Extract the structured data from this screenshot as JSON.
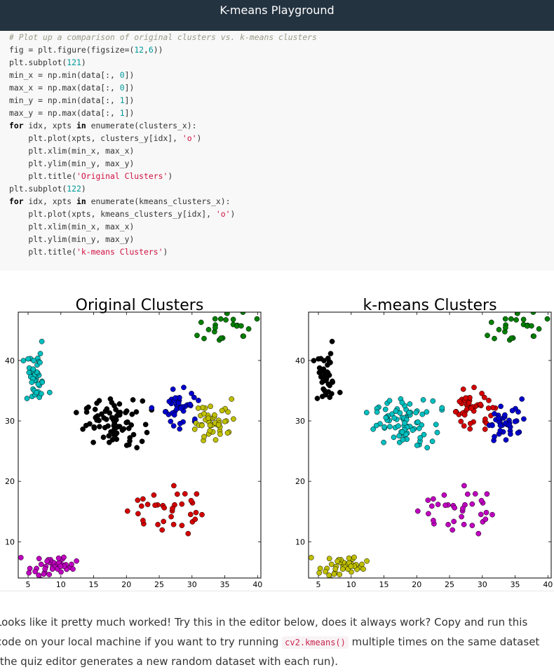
{
  "header": {
    "title": "K-means Playground"
  },
  "code_lines": [
    "# Plot up a comparison of original clusters vs. k-means clusters",
    "fig = plt.figure(figsize=(12,6))",
    "plt.subplot(121)",
    "min_x = np.min(data[:, 0])",
    "max_x = np.max(data[:, 0])",
    "min_y = np.min(data[:, 1])",
    "max_y = np.max(data[:, 1])",
    "for idx, xpts in enumerate(clusters_x):",
    "    plt.plot(xpts, clusters_y[idx], 'o')",
    "    plt.xlim(min_x, max_x)",
    "    plt.ylim(min_y, max_y)",
    "    plt.title('Original Clusters')",
    "plt.subplot(122)",
    "for idx, xpts in enumerate(kmeans_clusters_x):",
    "    plt.plot(xpts, kmeans_clusters_y[idx], 'o')",
    "    plt.xlim(min_x, max_x)",
    "    plt.ylim(min_y, max_y)",
    "    plt.title('k-means Clusters')"
  ],
  "chart_data": [
    {
      "type": "scatter",
      "title": "Original Clusters",
      "xlabel": "",
      "ylabel": "",
      "xlim": [
        3.5,
        40.5
      ],
      "ylim": [
        4,
        48
      ],
      "x_ticks": [
        5,
        10,
        15,
        20,
        25,
        30,
        35,
        40
      ],
      "y_ticks": [
        10,
        20,
        30,
        40
      ],
      "grid": false,
      "legend": "none",
      "series": [
        {
          "color": "#00bfbf",
          "center": [
            6.1,
            36.9
          ],
          "spread": [
            1.0,
            2.1
          ],
          "count": 40
        },
        {
          "color": "#000000",
          "center": [
            18.0,
            29.6
          ],
          "spread": [
            2.2,
            1.9
          ],
          "count": 80
        },
        {
          "color": "#0000cc",
          "center": [
            28.4,
            32.4
          ],
          "spread": [
            1.4,
            1.8
          ],
          "count": 40
        },
        {
          "color": "#bfbf00",
          "center": [
            33.5,
            30.2
          ],
          "spread": [
            1.8,
            1.7
          ],
          "count": 45
        },
        {
          "color": "#d40000",
          "center": [
            25.4,
            15.4
          ],
          "spread": [
            2.6,
            2.1
          ],
          "count": 35
        },
        {
          "color": "#bf00bf",
          "center": [
            8.8,
            5.9
          ],
          "spread": [
            1.8,
            0.9
          ],
          "count": 40
        },
        {
          "color": "#007f00",
          "center": [
            35.0,
            45.4
          ],
          "spread": [
            2.5,
            1.3
          ],
          "count": 25
        }
      ]
    },
    {
      "type": "scatter",
      "title": "k-means Clusters",
      "xlabel": "",
      "ylabel": "",
      "xlim": [
        3.5,
        40.5
      ],
      "ylim": [
        4,
        48
      ],
      "x_ticks": [
        5,
        10,
        15,
        20,
        25,
        30,
        35,
        40
      ],
      "y_ticks": [
        10,
        20,
        30,
        40
      ],
      "grid": false,
      "legend": "none",
      "series": [
        {
          "color": "#000000",
          "center": [
            6.1,
            36.9
          ],
          "spread": [
            1.0,
            2.1
          ],
          "count": 40
        },
        {
          "color": "#00bfbf",
          "center": [
            18.0,
            29.6
          ],
          "spread": [
            2.2,
            1.9
          ],
          "count": 80
        },
        {
          "color": "#d40000",
          "center": [
            29.2,
            32.4
          ],
          "spread": [
            1.6,
            1.9
          ],
          "count": 45
        },
        {
          "color": "#0000cc",
          "center": [
            34.0,
            30.1
          ],
          "spread": [
            1.7,
            1.5
          ],
          "count": 40
        },
        {
          "color": "#bf00bf",
          "center": [
            25.4,
            15.4
          ],
          "spread": [
            2.6,
            2.1
          ],
          "count": 35
        },
        {
          "color": "#bfbf00",
          "center": [
            8.8,
            5.9
          ],
          "spread": [
            1.8,
            0.9
          ],
          "count": 40
        },
        {
          "color": "#007f00",
          "center": [
            35.0,
            45.4
          ],
          "spread": [
            2.5,
            1.3
          ],
          "count": 25
        }
      ]
    }
  ],
  "prose": {
    "before": "Looks like it pretty much worked! Try this in the editor below, does it always work? Copy and run this code on your local machine if you want to try running ",
    "code": "cv2.kmeans()",
    "after": " multiple times on the same dataset (the quiz editor generates a new random dataset with each run)."
  }
}
